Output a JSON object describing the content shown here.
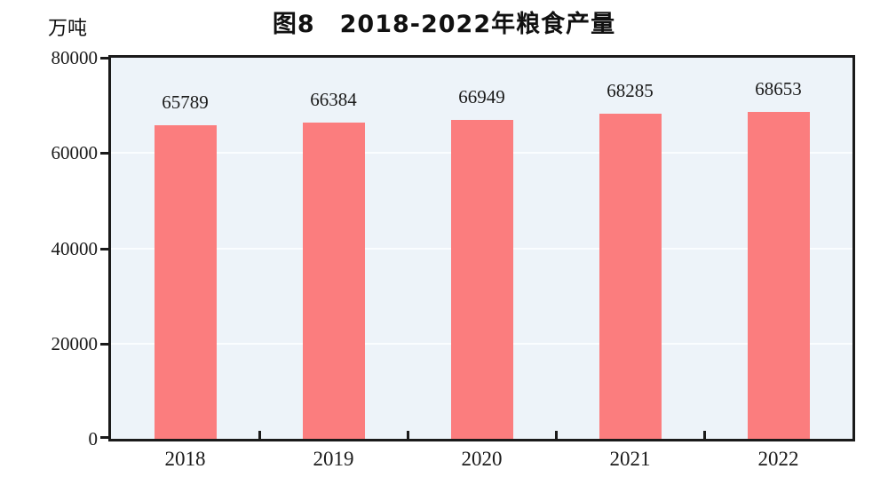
{
  "page": {
    "background": "#ffffff"
  },
  "chart_data": {
    "type": "bar",
    "title": "图8　2018-2022年粮食产量",
    "unit_label": "万吨",
    "categories": [
      "2018",
      "2019",
      "2020",
      "2021",
      "2022"
    ],
    "values": [
      65789,
      66384,
      66949,
      68285,
      68653
    ],
    "y_ticks": [
      0,
      20000,
      40000,
      60000,
      80000
    ],
    "ylim": [
      0,
      80000
    ],
    "grid": true,
    "legend": "none",
    "bar_color": "#fb7d7e",
    "plot_bg": "#edf3f9",
    "gridline_color": "#fafdff",
    "axis_color": "#1a1a1a",
    "text_color": "#1a1a1a"
  }
}
